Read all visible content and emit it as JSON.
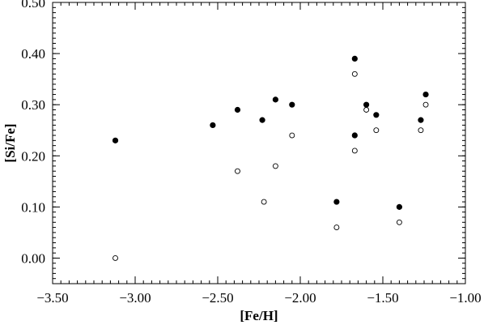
{
  "chart_data": {
    "type": "scatter",
    "title": "",
    "xlabel": "[Fe/H]",
    "ylabel": "[Si/Fe]",
    "xlim": [
      -3.5,
      -1.0
    ],
    "ylim": [
      -0.05,
      0.5
    ],
    "x_ticks": [
      -3.5,
      -3.0,
      -2.5,
      -2.0,
      -1.5,
      -1.0
    ],
    "x_tick_labels": [
      "−3.50",
      "−3.00",
      "−2.50",
      "−2.00",
      "−1.50",
      "−1.00"
    ],
    "y_ticks": [
      0.0,
      0.1,
      0.2,
      0.3,
      0.4,
      0.5
    ],
    "y_tick_labels": [
      "0.00",
      "0.10",
      "0.20",
      "0.30",
      "0.40",
      "0.50"
    ],
    "grid": false,
    "legend": "none",
    "series": [
      {
        "marker": "filled-circle",
        "color": "#000000",
        "points": [
          [
            -3.12,
            0.23
          ],
          [
            -2.53,
            0.26
          ],
          [
            -2.38,
            0.29
          ],
          [
            -2.23,
            0.27
          ],
          [
            -2.15,
            0.31
          ],
          [
            -2.05,
            0.3
          ],
          [
            -1.78,
            0.11
          ],
          [
            -1.67,
            0.39
          ],
          [
            -1.67,
            0.24
          ],
          [
            -1.6,
            0.3
          ],
          [
            -1.54,
            0.28
          ],
          [
            -1.4,
            0.1
          ],
          [
            -1.27,
            0.27
          ],
          [
            -1.24,
            0.32
          ]
        ]
      },
      {
        "marker": "open-circle",
        "color": "#000000",
        "points": [
          [
            -3.12,
            0.0
          ],
          [
            -2.38,
            0.17
          ],
          [
            -2.22,
            0.11
          ],
          [
            -2.15,
            0.18
          ],
          [
            -2.05,
            0.24
          ],
          [
            -1.78,
            0.06
          ],
          [
            -1.67,
            0.36
          ],
          [
            -1.67,
            0.21
          ],
          [
            -1.6,
            0.29
          ],
          [
            -1.54,
            0.25
          ],
          [
            -1.4,
            0.07
          ],
          [
            -1.27,
            0.25
          ],
          [
            -1.24,
            0.3
          ]
        ]
      }
    ]
  }
}
